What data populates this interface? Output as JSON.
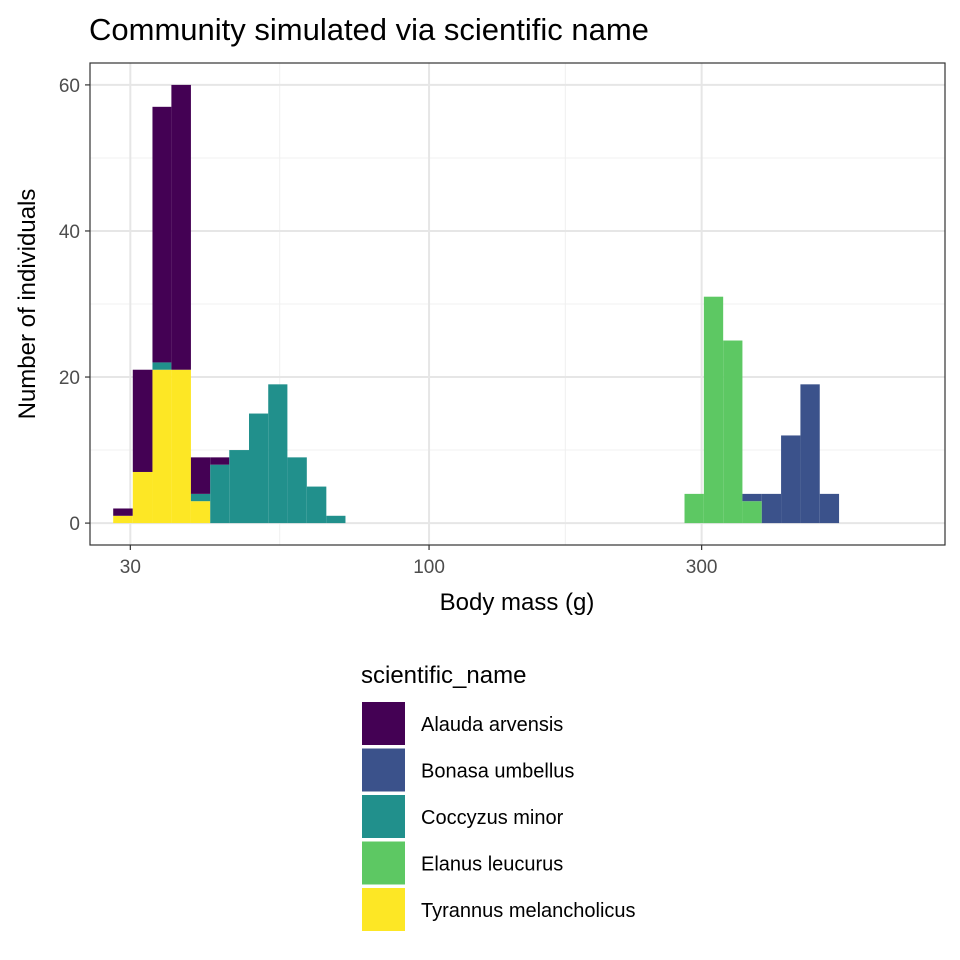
{
  "chart_data": {
    "type": "bar",
    "stacked": true,
    "title": "Community simulated via scientific name",
    "xlabel": "Body mass (g)",
    "ylabel": "Number of individuals",
    "x_scale": "log10",
    "xlim": [
      25.5,
      800
    ],
    "ylim": [
      -3,
      63
    ],
    "x_ticks": [
      30,
      100,
      300
    ],
    "y_ticks": [
      0,
      20,
      40,
      60
    ],
    "grid": true,
    "legend": {
      "title": "scientific_name",
      "position": "bottom",
      "entries": [
        "Alauda arvensis",
        "Bonasa umbellus",
        "Coccyzus minor",
        "Elanus leucurus",
        "Tyrannus melancholicus"
      ]
    },
    "colors": {
      "Alauda arvensis": "#440154",
      "Bonasa umbellus": "#3B528B",
      "Coccyzus minor": "#21908C",
      "Elanus leucurus": "#5DC863",
      "Tyrannus melancholicus": "#FDE725"
    },
    "bins": [
      {
        "x_min": 28.0,
        "x_max": 30.3,
        "counts": {
          "Tyrannus melancholicus": 1,
          "Alauda arvensis": 1
        }
      },
      {
        "x_min": 30.3,
        "x_max": 32.8,
        "counts": {
          "Tyrannus melancholicus": 7,
          "Alauda arvensis": 14
        }
      },
      {
        "x_min": 32.8,
        "x_max": 35.4,
        "counts": {
          "Tyrannus melancholicus": 21,
          "Coccyzus minor": 1,
          "Alauda arvensis": 35
        }
      },
      {
        "x_min": 35.4,
        "x_max": 38.3,
        "counts": {
          "Tyrannus melancholicus": 21,
          "Alauda arvensis": 39
        }
      },
      {
        "x_min": 38.3,
        "x_max": 41.4,
        "counts": {
          "Tyrannus melancholicus": 3,
          "Coccyzus minor": 1,
          "Alauda arvensis": 5
        }
      },
      {
        "x_min": 41.4,
        "x_max": 44.7,
        "counts": {
          "Coccyzus minor": 8,
          "Alauda arvensis": 1
        }
      },
      {
        "x_min": 44.7,
        "x_max": 48.4,
        "counts": {
          "Coccyzus minor": 10
        }
      },
      {
        "x_min": 48.4,
        "x_max": 52.3,
        "counts": {
          "Coccyzus minor": 15
        }
      },
      {
        "x_min": 52.3,
        "x_max": 56.5,
        "counts": {
          "Coccyzus minor": 19
        }
      },
      {
        "x_min": 56.5,
        "x_max": 61.1,
        "counts": {
          "Coccyzus minor": 9
        }
      },
      {
        "x_min": 61.1,
        "x_max": 66.1,
        "counts": {
          "Coccyzus minor": 5
        }
      },
      {
        "x_min": 66.1,
        "x_max": 71.4,
        "counts": {
          "Coccyzus minor": 1
        }
      },
      {
        "x_min": 280.0,
        "x_max": 302.7,
        "counts": {
          "Elanus leucurus": 4
        }
      },
      {
        "x_min": 302.7,
        "x_max": 327.2,
        "counts": {
          "Elanus leucurus": 31
        }
      },
      {
        "x_min": 327.2,
        "x_max": 353.6,
        "counts": {
          "Elanus leucurus": 25
        }
      },
      {
        "x_min": 353.6,
        "x_max": 382.3,
        "counts": {
          "Elanus leucurus": 3,
          "Bonasa umbellus": 1
        }
      },
      {
        "x_min": 382.3,
        "x_max": 413.2,
        "counts": {
          "Bonasa umbellus": 4
        }
      },
      {
        "x_min": 413.2,
        "x_max": 446.7,
        "counts": {
          "Bonasa umbellus": 12
        }
      },
      {
        "x_min": 446.7,
        "x_max": 482.9,
        "counts": {
          "Bonasa umbellus": 19
        }
      },
      {
        "x_min": 482.9,
        "x_max": 522.0,
        "counts": {
          "Bonasa umbellus": 4
        }
      }
    ],
    "stack_order_bottom_to_top": [
      "Tyrannus melancholicus",
      "Elanus leucurus",
      "Coccyzus minor",
      "Bonasa umbellus",
      "Alauda arvensis"
    ]
  }
}
